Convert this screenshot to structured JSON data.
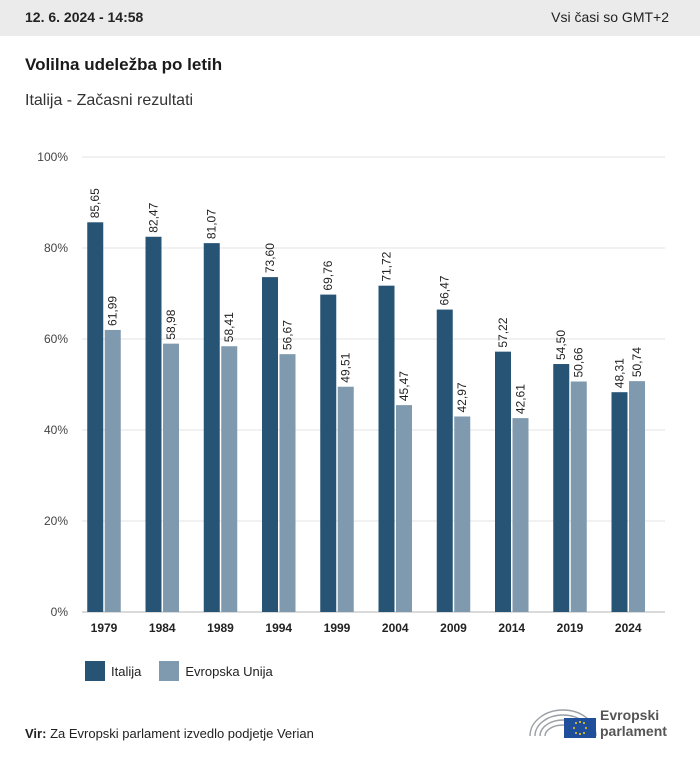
{
  "header": {
    "date": "12. 6. 2024 - 14:58",
    "timezone": "Vsi časi so GMT+2"
  },
  "title": "Volilna udeležba po letih",
  "subtitle": "Italija - Začasni rezultati",
  "chart_data": {
    "type": "bar",
    "title": "Volilna udeležba po letih",
    "subtitle": "Italija - Začasni rezultati",
    "categories": [
      "1979",
      "1984",
      "1989",
      "1994",
      "1999",
      "2004",
      "2009",
      "2014",
      "2019",
      "2024"
    ],
    "series": [
      {
        "name": "Italija",
        "color": "#275474",
        "values": [
          85.65,
          82.47,
          81.07,
          73.6,
          69.76,
          71.72,
          66.47,
          57.22,
          54.5,
          48.31
        ],
        "labels": [
          "85,65",
          "82,47",
          "81,07",
          "73,60",
          "69,76",
          "71,72",
          "66,47",
          "57,22",
          "54,50",
          "48,31"
        ]
      },
      {
        "name": "Evropska Unija",
        "color": "#7f9aae",
        "values": [
          61.99,
          58.98,
          58.41,
          56.67,
          49.51,
          45.47,
          42.97,
          42.61,
          50.66,
          50.74
        ],
        "labels": [
          "61,99",
          "58,98",
          "58,41",
          "56,67",
          "49,51",
          "45,47",
          "42,97",
          "42,61",
          "50,66",
          "50,74"
        ]
      }
    ],
    "ylim": [
      0,
      100
    ],
    "yticks": [
      0,
      20,
      40,
      60,
      80,
      100
    ],
    "ytick_labels": [
      "0%",
      "20%",
      "40%",
      "60%",
      "80%",
      "100%"
    ],
    "grid": true,
    "legend": "bottom-left"
  },
  "legend": {
    "items": [
      {
        "label": "Italija"
      },
      {
        "label": "Evropska Unija"
      }
    ]
  },
  "footer": {
    "source_label": "Vir:",
    "source_text": "Za Evropski parlament izvedlo podjetje Verian"
  },
  "logo": {
    "line1": "Evropski",
    "line2": "parlament"
  }
}
